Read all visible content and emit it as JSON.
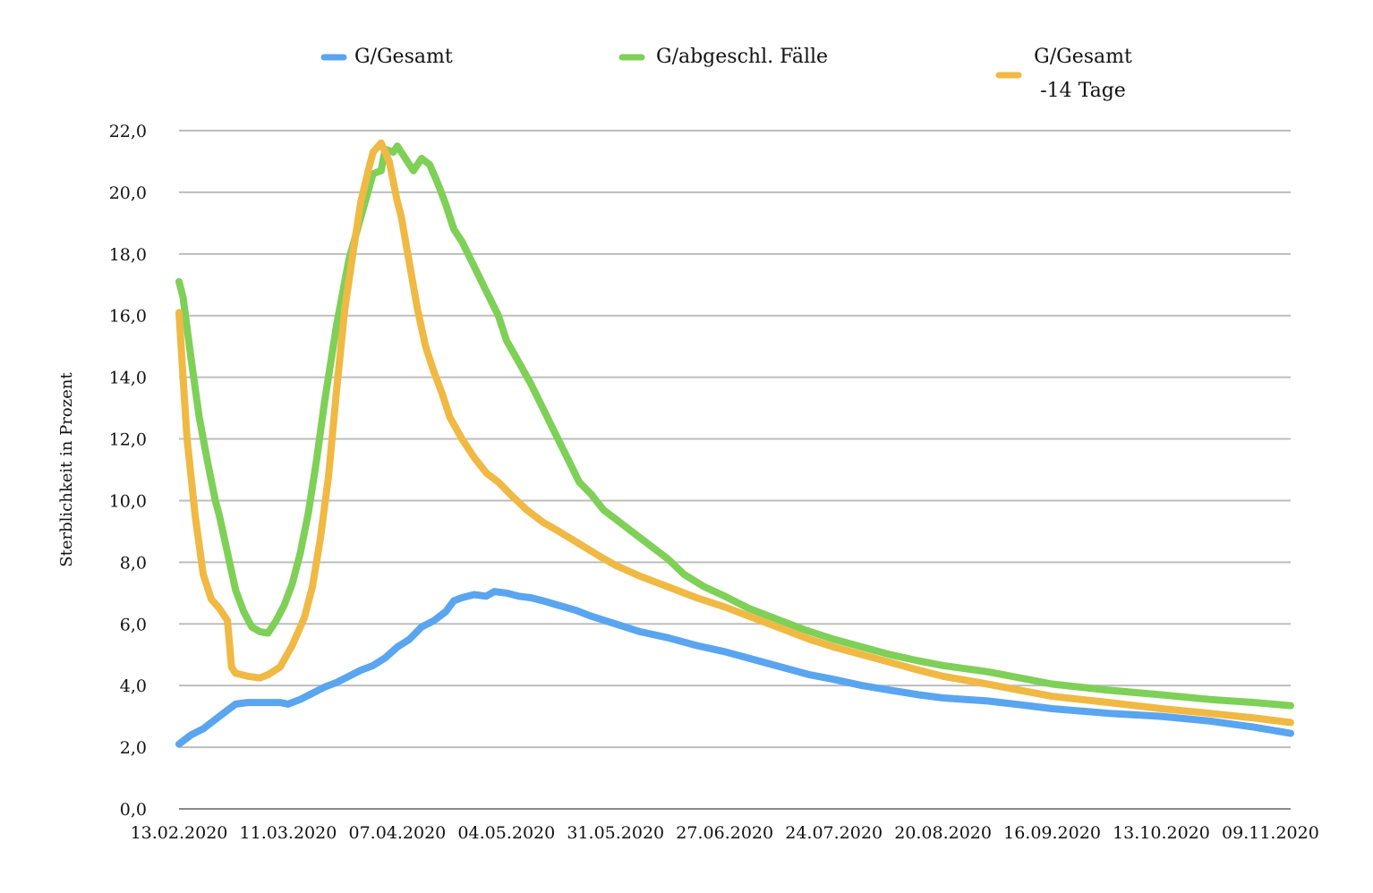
{
  "chart_data": {
    "type": "line",
    "title": "",
    "xlabel": "",
    "ylabel": "Sterblichkeit in Prozent",
    "ylim": [
      0,
      22
    ],
    "y_ticks": [
      "0,0",
      "2,0",
      "4,0",
      "6,0",
      "8,0",
      "10,0",
      "12,0",
      "14,0",
      "16,0",
      "18,0",
      "20,0",
      "22,0"
    ],
    "x_range": [
      "2020-02-13",
      "2020-11-14"
    ],
    "x_ticks": [
      "13.02.2020",
      "11.03.2020",
      "07.04.2020",
      "04.05.2020",
      "31.05.2020",
      "27.06.2020",
      "24.07.2020",
      "20.08.2020",
      "16.09.2020",
      "13.10.2020",
      "09.11.2020"
    ],
    "x_tick_dates": [
      "2020-02-13",
      "2020-03-11",
      "2020-04-07",
      "2020-05-04",
      "2020-05-31",
      "2020-06-27",
      "2020-07-24",
      "2020-08-20",
      "2020-09-16",
      "2020-10-13",
      "2020-11-09"
    ],
    "grid": true,
    "legend_position": "top",
    "series": [
      {
        "name": "G/Gesamt",
        "color": "#5aa5ef",
        "points": [
          [
            "2020-02-13",
            2.1
          ],
          [
            "2020-02-16",
            2.4
          ],
          [
            "2020-02-19",
            2.6
          ],
          [
            "2020-02-22",
            2.9
          ],
          [
            "2020-02-25",
            3.2
          ],
          [
            "2020-02-27",
            3.4
          ],
          [
            "2020-03-01",
            3.45
          ],
          [
            "2020-03-05",
            3.45
          ],
          [
            "2020-03-09",
            3.45
          ],
          [
            "2020-03-11",
            3.4
          ],
          [
            "2020-03-14",
            3.55
          ],
          [
            "2020-03-17",
            3.75
          ],
          [
            "2020-03-20",
            3.95
          ],
          [
            "2020-03-23",
            4.1
          ],
          [
            "2020-03-26",
            4.3
          ],
          [
            "2020-03-29",
            4.5
          ],
          [
            "2020-04-01",
            4.65
          ],
          [
            "2020-04-04",
            4.9
          ],
          [
            "2020-04-07",
            5.25
          ],
          [
            "2020-04-10",
            5.5
          ],
          [
            "2020-04-13",
            5.9
          ],
          [
            "2020-04-16",
            6.1
          ],
          [
            "2020-04-19",
            6.4
          ],
          [
            "2020-04-21",
            6.75
          ],
          [
            "2020-04-23",
            6.85
          ],
          [
            "2020-04-26",
            6.95
          ],
          [
            "2020-04-29",
            6.9
          ],
          [
            "2020-05-01",
            7.05
          ],
          [
            "2020-05-04",
            7.0
          ],
          [
            "2020-05-07",
            6.9
          ],
          [
            "2020-05-10",
            6.85
          ],
          [
            "2020-05-13",
            6.75
          ],
          [
            "2020-05-17",
            6.6
          ],
          [
            "2020-05-21",
            6.45
          ],
          [
            "2020-05-25",
            6.25
          ],
          [
            "2020-05-31",
            6.0
          ],
          [
            "2020-06-06",
            5.75
          ],
          [
            "2020-06-13",
            5.55
          ],
          [
            "2020-06-20",
            5.3
          ],
          [
            "2020-06-27",
            5.1
          ],
          [
            "2020-07-04",
            4.85
          ],
          [
            "2020-07-11",
            4.6
          ],
          [
            "2020-07-18",
            4.35
          ],
          [
            "2020-07-24",
            4.2
          ],
          [
            "2020-07-31",
            4.0
          ],
          [
            "2020-08-07",
            3.85
          ],
          [
            "2020-08-14",
            3.7
          ],
          [
            "2020-08-20",
            3.6
          ],
          [
            "2020-08-31",
            3.5
          ],
          [
            "2020-09-10",
            3.35
          ],
          [
            "2020-09-16",
            3.25
          ],
          [
            "2020-09-30",
            3.1
          ],
          [
            "2020-10-13",
            3.0
          ],
          [
            "2020-10-25",
            2.85
          ],
          [
            "2020-11-05",
            2.65
          ],
          [
            "2020-11-14",
            2.45
          ]
        ]
      },
      {
        "name": "G/abgeschl. Fälle",
        "color": "#7ed057",
        "points": [
          [
            "2020-02-13",
            17.1
          ],
          [
            "2020-02-14",
            16.6
          ],
          [
            "2020-02-16",
            14.6
          ],
          [
            "2020-02-18",
            12.7
          ],
          [
            "2020-02-20",
            11.3
          ],
          [
            "2020-02-22",
            10.0
          ],
          [
            "2020-02-23",
            9.5
          ],
          [
            "2020-02-25",
            8.3
          ],
          [
            "2020-02-27",
            7.1
          ],
          [
            "2020-02-29",
            6.4
          ],
          [
            "2020-03-02",
            5.9
          ],
          [
            "2020-03-04",
            5.75
          ],
          [
            "2020-03-06",
            5.7
          ],
          [
            "2020-03-08",
            6.1
          ],
          [
            "2020-03-10",
            6.6
          ],
          [
            "2020-03-12",
            7.3
          ],
          [
            "2020-03-14",
            8.3
          ],
          [
            "2020-03-16",
            9.6
          ],
          [
            "2020-03-18",
            11.3
          ],
          [
            "2020-03-20",
            13.2
          ],
          [
            "2020-03-23",
            15.7
          ],
          [
            "2020-03-26",
            17.8
          ],
          [
            "2020-03-29",
            19.2
          ],
          [
            "2020-04-01",
            20.6
          ],
          [
            "2020-04-03",
            20.7
          ],
          [
            "2020-04-04",
            21.4
          ],
          [
            "2020-04-06",
            21.3
          ],
          [
            "2020-04-07",
            21.5
          ],
          [
            "2020-04-09",
            21.1
          ],
          [
            "2020-04-11",
            20.7
          ],
          [
            "2020-04-13",
            21.1
          ],
          [
            "2020-04-15",
            20.9
          ],
          [
            "2020-04-17",
            20.3
          ],
          [
            "2020-04-19",
            19.6
          ],
          [
            "2020-04-21",
            18.8
          ],
          [
            "2020-04-23",
            18.4
          ],
          [
            "2020-04-26",
            17.6
          ],
          [
            "2020-04-29",
            16.8
          ],
          [
            "2020-05-02",
            16.0
          ],
          [
            "2020-05-04",
            15.2
          ],
          [
            "2020-05-07",
            14.5
          ],
          [
            "2020-05-10",
            13.8
          ],
          [
            "2020-05-13",
            13.0
          ],
          [
            "2020-05-16",
            12.2
          ],
          [
            "2020-05-19",
            11.4
          ],
          [
            "2020-05-22",
            10.6
          ],
          [
            "2020-05-25",
            10.2
          ],
          [
            "2020-05-28",
            9.7
          ],
          [
            "2020-05-31",
            9.4
          ],
          [
            "2020-06-04",
            9.0
          ],
          [
            "2020-06-08",
            8.6
          ],
          [
            "2020-06-13",
            8.1
          ],
          [
            "2020-06-17",
            7.6
          ],
          [
            "2020-06-22",
            7.2
          ],
          [
            "2020-06-27",
            6.9
          ],
          [
            "2020-07-03",
            6.5
          ],
          [
            "2020-07-10",
            6.15
          ],
          [
            "2020-07-17",
            5.8
          ],
          [
            "2020-07-24",
            5.5
          ],
          [
            "2020-07-31",
            5.25
          ],
          [
            "2020-08-07",
            5.0
          ],
          [
            "2020-08-14",
            4.8
          ],
          [
            "2020-08-20",
            4.65
          ],
          [
            "2020-08-31",
            4.45
          ],
          [
            "2020-09-10",
            4.2
          ],
          [
            "2020-09-16",
            4.05
          ],
          [
            "2020-09-30",
            3.85
          ],
          [
            "2020-10-13",
            3.7
          ],
          [
            "2020-10-25",
            3.55
          ],
          [
            "2020-11-05",
            3.45
          ],
          [
            "2020-11-14",
            3.35
          ]
        ]
      },
      {
        "name": "G/Gesamt\n-14 Tage",
        "color": "#f0b944",
        "points": [
          [
            "2020-02-13",
            16.1
          ],
          [
            "2020-02-14",
            14.0
          ],
          [
            "2020-02-15",
            12.0
          ],
          [
            "2020-02-17",
            9.5
          ],
          [
            "2020-02-19",
            7.6
          ],
          [
            "2020-02-21",
            6.8
          ],
          [
            "2020-02-23",
            6.5
          ],
          [
            "2020-02-25",
            6.1
          ],
          [
            "2020-02-26",
            4.6
          ],
          [
            "2020-02-27",
            4.4
          ],
          [
            "2020-03-01",
            4.3
          ],
          [
            "2020-03-04",
            4.25
          ],
          [
            "2020-03-06",
            4.35
          ],
          [
            "2020-03-09",
            4.6
          ],
          [
            "2020-03-12",
            5.3
          ],
          [
            "2020-03-15",
            6.2
          ],
          [
            "2020-03-17",
            7.2
          ],
          [
            "2020-03-19",
            8.8
          ],
          [
            "2020-03-21",
            10.8
          ],
          [
            "2020-03-23",
            13.6
          ],
          [
            "2020-03-25",
            16.2
          ],
          [
            "2020-03-27",
            18.0
          ],
          [
            "2020-03-29",
            19.7
          ],
          [
            "2020-03-31",
            20.8
          ],
          [
            "2020-04-01",
            21.3
          ],
          [
            "2020-04-03",
            21.6
          ],
          [
            "2020-04-05",
            21.0
          ],
          [
            "2020-04-07",
            19.7
          ],
          [
            "2020-04-08",
            19.2
          ],
          [
            "2020-04-10",
            17.7
          ],
          [
            "2020-04-12",
            16.2
          ],
          [
            "2020-04-14",
            15.0
          ],
          [
            "2020-04-16",
            14.2
          ],
          [
            "2020-04-18",
            13.5
          ],
          [
            "2020-04-20",
            12.7
          ],
          [
            "2020-04-23",
            12.0
          ],
          [
            "2020-04-26",
            11.4
          ],
          [
            "2020-04-29",
            10.9
          ],
          [
            "2020-05-02",
            10.6
          ],
          [
            "2020-05-05",
            10.2
          ],
          [
            "2020-05-09",
            9.7
          ],
          [
            "2020-05-13",
            9.3
          ],
          [
            "2020-05-17",
            9.0
          ],
          [
            "2020-05-22",
            8.6
          ],
          [
            "2020-05-27",
            8.2
          ],
          [
            "2020-05-31",
            7.9
          ],
          [
            "2020-06-06",
            7.55
          ],
          [
            "2020-06-13",
            7.2
          ],
          [
            "2020-06-20",
            6.85
          ],
          [
            "2020-06-27",
            6.55
          ],
          [
            "2020-07-04",
            6.2
          ],
          [
            "2020-07-11",
            5.85
          ],
          [
            "2020-07-18",
            5.5
          ],
          [
            "2020-07-24",
            5.25
          ],
          [
            "2020-07-31",
            5.0
          ],
          [
            "2020-08-07",
            4.75
          ],
          [
            "2020-08-14",
            4.5
          ],
          [
            "2020-08-20",
            4.3
          ],
          [
            "2020-08-31",
            4.05
          ],
          [
            "2020-09-10",
            3.8
          ],
          [
            "2020-09-16",
            3.65
          ],
          [
            "2020-09-30",
            3.45
          ],
          [
            "2020-10-13",
            3.25
          ],
          [
            "2020-10-25",
            3.1
          ],
          [
            "2020-11-05",
            2.95
          ],
          [
            "2020-11-14",
            2.8
          ]
        ]
      }
    ]
  }
}
